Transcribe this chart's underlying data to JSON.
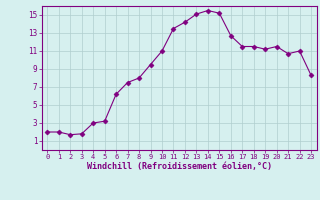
{
  "x": [
    0,
    1,
    2,
    3,
    4,
    5,
    6,
    7,
    8,
    9,
    10,
    11,
    12,
    13,
    14,
    15,
    16,
    17,
    18,
    19,
    20,
    21,
    22,
    23
  ],
  "y": [
    2.0,
    2.0,
    1.7,
    1.8,
    3.0,
    3.2,
    6.2,
    7.5,
    8.0,
    9.5,
    11.0,
    13.5,
    14.2,
    15.1,
    15.5,
    15.2,
    12.7,
    11.5,
    11.5,
    11.2,
    11.5,
    10.7,
    11.0,
    8.3
  ],
  "line_color": "#800080",
  "marker": "D",
  "marker_size": 2.5,
  "bg_color": "#d6f0ef",
  "grid_color": "#b0cece",
  "xlabel": "Windchill (Refroidissement éolien,°C)",
  "xlabel_color": "#800080",
  "tick_color": "#800080",
  "spine_color": "#800080",
  "xlim": [
    -0.5,
    23.5
  ],
  "ylim": [
    0,
    16
  ],
  "yticks": [
    1,
    3,
    5,
    7,
    9,
    11,
    13,
    15
  ],
  "xticks": [
    0,
    1,
    2,
    3,
    4,
    5,
    6,
    7,
    8,
    9,
    10,
    11,
    12,
    13,
    14,
    15,
    16,
    17,
    18,
    19,
    20,
    21,
    22,
    23
  ],
  "figsize": [
    3.2,
    2.0
  ],
  "dpi": 100
}
